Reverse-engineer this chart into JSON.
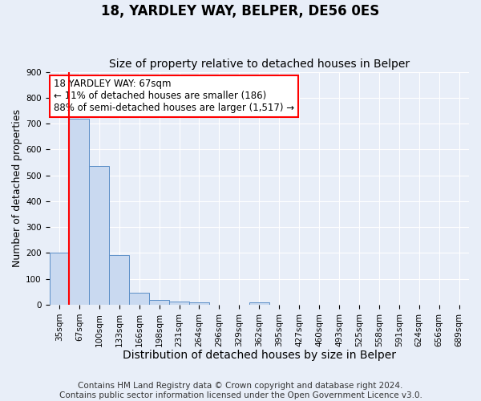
{
  "title": "18, YARDLEY WAY, BELPER, DE56 0ES",
  "subtitle": "Size of property relative to detached houses in Belper",
  "xlabel": "Distribution of detached houses by size in Belper",
  "ylabel": "Number of detached properties",
  "bar_labels": [
    "35sqm",
    "67sqm",
    "100sqm",
    "133sqm",
    "166sqm",
    "198sqm",
    "231sqm",
    "264sqm",
    "296sqm",
    "329sqm",
    "362sqm",
    "395sqm",
    "427sqm",
    "460sqm",
    "493sqm",
    "525sqm",
    "558sqm",
    "591sqm",
    "624sqm",
    "656sqm",
    "689sqm"
  ],
  "bar_values": [
    200,
    720,
    537,
    193,
    45,
    20,
    12,
    10,
    0,
    0,
    8,
    0,
    0,
    0,
    0,
    0,
    0,
    0,
    0,
    0,
    0
  ],
  "bar_color": "#c9d9f0",
  "bar_edge_color": "#5b8ec7",
  "red_line_bar_index": 1,
  "ylim": [
    0,
    900
  ],
  "yticks": [
    0,
    100,
    200,
    300,
    400,
    500,
    600,
    700,
    800,
    900
  ],
  "annotation_line1": "18 YARDLEY WAY: 67sqm",
  "annotation_line2": "← 11% of detached houses are smaller (186)",
  "annotation_line3": "88% of semi-detached houses are larger (1,517) →",
  "footer_line1": "Contains HM Land Registry data © Crown copyright and database right 2024.",
  "footer_line2": "Contains public sector information licensed under the Open Government Licence v3.0.",
  "background_color": "#e8eef8",
  "grid_color": "#ffffff",
  "title_fontsize": 12,
  "subtitle_fontsize": 10,
  "xlabel_fontsize": 10,
  "ylabel_fontsize": 9,
  "tick_fontsize": 7.5,
  "annotation_fontsize": 8.5,
  "footer_fontsize": 7.5
}
